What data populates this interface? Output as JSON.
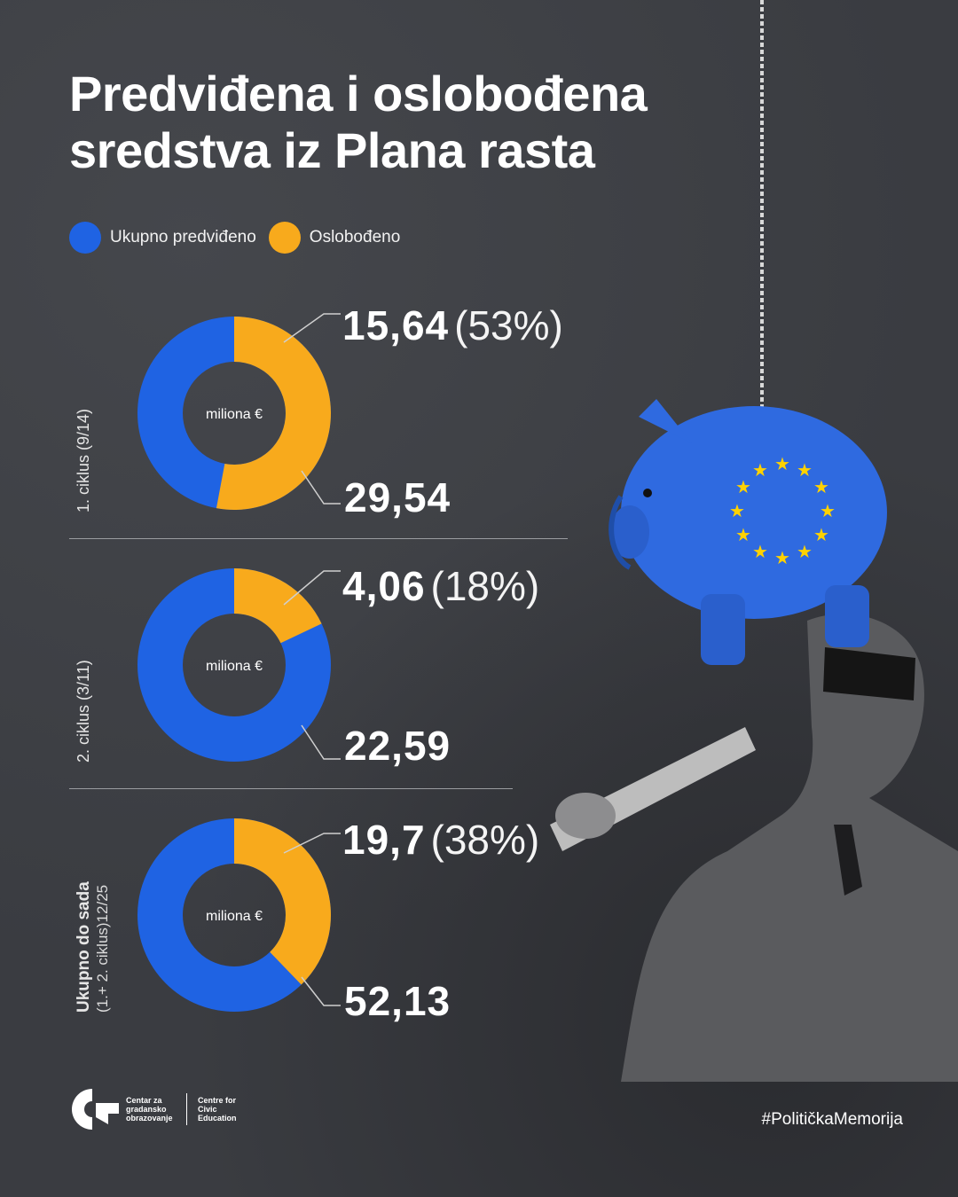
{
  "title": "Predviđena i oslobođena sredstva iz Plana rasta",
  "legend": [
    {
      "label": "Ukupno predviđeno",
      "color": "#1f63e3"
    },
    {
      "label": "Oslobođeno",
      "color": "#f8aa1c"
    }
  ],
  "colors": {
    "total": "#1f63e3",
    "released": "#f8aa1c",
    "background": "#3a3c41"
  },
  "chart_data": [
    {
      "type": "pie",
      "label": "1. ciklus (9/14)",
      "center_label": "miliona €",
      "total": 29.54,
      "released": 15.64,
      "released_label": "15,64",
      "total_label": "29,54",
      "percent_label": "(53%)"
    },
    {
      "type": "pie",
      "label": "2. ciklus (3/11)",
      "center_label": "miliona €",
      "total": 22.59,
      "released": 4.06,
      "released_label": "4,06",
      "total_label": "22,59",
      "percent_label": "(18%)"
    },
    {
      "type": "pie",
      "label_bold": "Ukupno do sada",
      "label_sub": "(1.+ 2. ciklus)12/25",
      "center_label": "miliona €",
      "total": 52.13,
      "released": 19.7,
      "released_label": "19,7",
      "total_label": "52,13",
      "percent_label": "(38%)"
    }
  ],
  "footer": {
    "org_local": "Centar za gradansko obrazovanje",
    "org_en": "Centre for Civic Education",
    "hashtag": "#PolitičkaMemorija"
  },
  "illustration": {
    "icon": "eu-piggy-bank-icon",
    "person": "blindfolded-man-with-bat"
  }
}
